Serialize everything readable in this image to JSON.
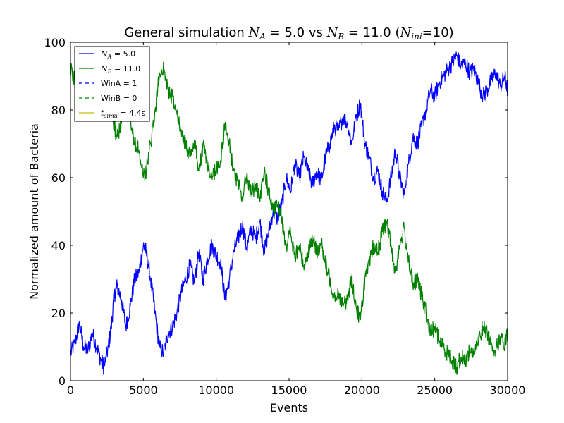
{
  "chart_data": {
    "type": "line",
    "title": {
      "prefix": "General simulation ",
      "na_sym": "N",
      "na_sub": "A",
      "na_val": " = 5.0 vs ",
      "nb_sym": "N",
      "nb_sub": "B",
      "nb_val": " = 11.0 (",
      "ni_sym": "N",
      "ni_sub": "ini",
      "ni_val": "=10)"
    },
    "xlabel": "Events",
    "ylabel": "Normalized amount of Bacteria",
    "xlim": [
      0,
      30000
    ],
    "ylim": [
      0,
      100
    ],
    "xticks": [
      0,
      5000,
      10000,
      15000,
      20000,
      25000,
      30000
    ],
    "yticks": [
      0,
      20,
      40,
      60,
      80,
      100
    ],
    "x_tick_labels": [
      "0",
      "5000",
      "10000",
      "15000",
      "20000",
      "25000",
      "30000"
    ],
    "y_tick_labels": [
      "0",
      "20",
      "40",
      "60",
      "80",
      "100"
    ],
    "grid": false,
    "legend_position": "top-left",
    "legend": [
      {
        "sym": "N",
        "sub": "A",
        "text": " = 5.0",
        "style": "solid",
        "color": "#0000ff"
      },
      {
        "sym": "N",
        "sub": "B",
        "text": " = 11.0",
        "style": "solid",
        "color": "#008000"
      },
      {
        "sym": "",
        "sub": "",
        "text": "WinA = 1",
        "style": "dashed",
        "color": "#0000ff"
      },
      {
        "sym": "",
        "sub": "",
        "text": "WinB = 0",
        "style": "dashed",
        "color": "#008000"
      },
      {
        "sym": "t",
        "sub": "simu",
        "text": " = 4.4s",
        "style": "solid",
        "color": "#bfbf00"
      }
    ],
    "series": [
      {
        "color": "#0000ff",
        "x": [
          0,
          300,
          600,
          900,
          1200,
          1500,
          1800,
          2100,
          2300,
          2600,
          2800,
          3000,
          3200,
          3500,
          3800,
          4100,
          4400,
          4700,
          5000,
          5200,
          5500,
          5800,
          6100,
          6400,
          6700,
          7000,
          7300,
          7600,
          7900,
          8200,
          8500,
          8800,
          9100,
          9400,
          9700,
          10000,
          10300,
          10600,
          10900,
          11200,
          11500,
          11800,
          12100,
          12400,
          12700,
          13000,
          13300,
          13600,
          13900,
          14200,
          14500,
          14800,
          15100,
          15400,
          15700,
          16000,
          16300,
          16600,
          16900,
          17200,
          17500,
          17800,
          18100,
          18400,
          18700,
          19000,
          19300,
          19600,
          19900,
          20200,
          20500,
          20800,
          21100,
          21400,
          21700,
          22000,
          22300,
          22600,
          22900,
          23200,
          23500,
          23800,
          24100,
          24400,
          24700,
          25000,
          25300,
          25600,
          25900,
          26200,
          26500,
          26800,
          27100,
          27400,
          27700,
          28000,
          28300,
          28600,
          28900,
          29200,
          29500,
          29800,
          30000
        ],
        "y": [
          8,
          11,
          17,
          10,
          9,
          14,
          10,
          6,
          4,
          10,
          16,
          25,
          28,
          24,
          16,
          22,
          30,
          32,
          40,
          38,
          30,
          20,
          10,
          8,
          14,
          16,
          20,
          26,
          30,
          34,
          29,
          38,
          30,
          36,
          40,
          37,
          35,
          24,
          30,
          38,
          42,
          46,
          39,
          45,
          42,
          47,
          38,
          44,
          50,
          48,
          52,
          60,
          56,
          64,
          60,
          66,
          62,
          58,
          62,
          59,
          66,
          70,
          75,
          74,
          78,
          76,
          70,
          78,
          82,
          70,
          66,
          60,
          62,
          56,
          53,
          60,
          68,
          60,
          55,
          64,
          72,
          70,
          75,
          80,
          86,
          84,
          88,
          90,
          92,
          94,
          96,
          93,
          94,
          91,
          92,
          88,
          84,
          86,
          89,
          91,
          87,
          90,
          86
        ]
      },
      {
        "color": "#008000",
        "x": [
          0,
          300,
          600,
          900,
          1200,
          1500,
          1800,
          2100,
          2300,
          2600,
          2800,
          3000,
          3200,
          3500,
          3800,
          4100,
          4400,
          4700,
          5000,
          5200,
          5500,
          5800,
          6100,
          6400,
          6700,
          7000,
          7300,
          7600,
          7900,
          8200,
          8500,
          8800,
          9100,
          9400,
          9700,
          10000,
          10300,
          10600,
          10900,
          11200,
          11500,
          11800,
          12100,
          12400,
          12700,
          13000,
          13300,
          13600,
          13900,
          14200,
          14500,
          14800,
          15100,
          15400,
          15700,
          16000,
          16300,
          16600,
          16900,
          17200,
          17500,
          17800,
          18100,
          18400,
          18700,
          19000,
          19300,
          19600,
          19900,
          20200,
          20500,
          20800,
          21100,
          21400,
          21700,
          22000,
          22300,
          22600,
          22900,
          23200,
          23500,
          23800,
          24100,
          24400,
          24700,
          25000,
          25300,
          25600,
          25900,
          26200,
          26500,
          26800,
          27100,
          27400,
          27700,
          28000,
          28300,
          28600,
          28900,
          29200,
          29500,
          29800,
          30000
        ],
        "y": [
          92,
          89,
          83,
          90,
          91,
          86,
          90,
          94,
          96,
          90,
          84,
          75,
          72,
          76,
          84,
          78,
          70,
          68,
          60,
          62,
          70,
          80,
          90,
          92,
          86,
          84,
          80,
          74,
          70,
          66,
          71,
          62,
          70,
          64,
          60,
          63,
          65,
          76,
          70,
          62,
          58,
          54,
          61,
          55,
          58,
          53,
          62,
          56,
          50,
          52,
          48,
          40,
          44,
          36,
          40,
          34,
          38,
          42,
          38,
          41,
          34,
          30,
          25,
          26,
          22,
          24,
          30,
          22,
          18,
          30,
          34,
          40,
          38,
          44,
          47,
          40,
          32,
          40,
          45,
          36,
          28,
          30,
          25,
          20,
          14,
          16,
          12,
          10,
          8,
          6,
          4,
          7,
          6,
          9,
          8,
          12,
          16,
          14,
          11,
          9,
          13,
          10,
          14
        ]
      }
    ]
  }
}
